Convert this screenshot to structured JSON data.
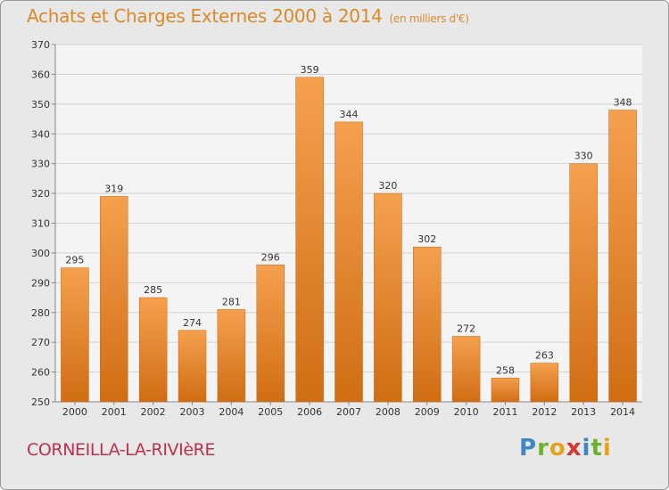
{
  "header": {
    "title": "Achats et Charges Externes 2000 à 2014",
    "subtitle": "(en milliers d'€)"
  },
  "footer": {
    "city": "CORNEILLA-LA-RIVIèRE",
    "logo_text": "Proxiti"
  },
  "colors": {
    "bar_light": "#f5a04e",
    "bar_dark": "#d06d14",
    "title": "#d98a2c",
    "city": "#c0304a"
  },
  "chart_data": {
    "type": "bar",
    "categories": [
      "2000",
      "2001",
      "2002",
      "2003",
      "2004",
      "2005",
      "2006",
      "2007",
      "2008",
      "2009",
      "2010",
      "2011",
      "2012",
      "2013",
      "2014"
    ],
    "values": [
      295,
      319,
      285,
      274,
      281,
      296,
      359,
      344,
      320,
      302,
      272,
      258,
      263,
      330,
      348
    ],
    "title": "Achats et Charges Externes 2000 à 2014",
    "xlabel": "",
    "ylabel": "",
    "ylim": [
      250,
      370
    ],
    "yticks": [
      250,
      260,
      270,
      280,
      290,
      300,
      310,
      320,
      330,
      340,
      350,
      360,
      370
    ],
    "grid": true,
    "data_labels": true
  }
}
